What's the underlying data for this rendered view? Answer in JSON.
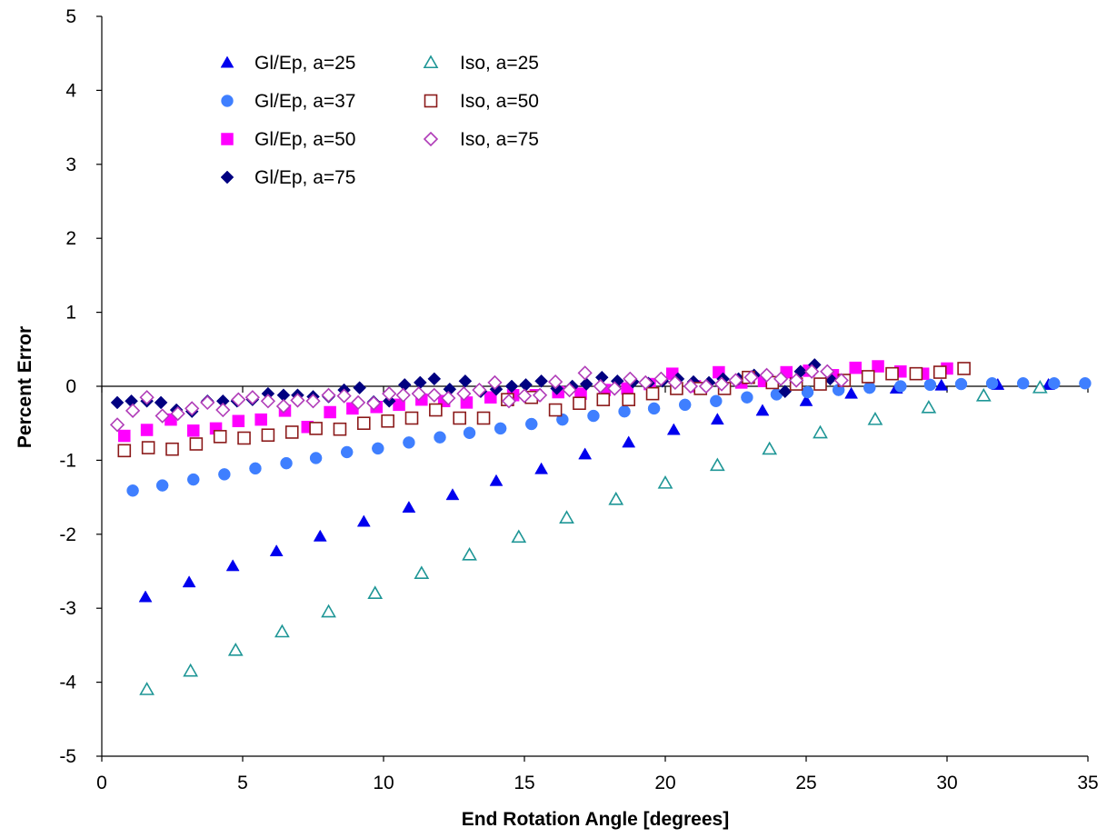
{
  "chart_data": {
    "type": "scatter",
    "title": "",
    "xlabel": "End Rotation Angle [degrees]",
    "ylabel": "Percent Error",
    "xlim": [
      0,
      35
    ],
    "ylim": [
      -5,
      5
    ],
    "xticks": [
      "0",
      "5",
      "10",
      "15",
      "20",
      "25",
      "30",
      "35"
    ],
    "yticks": [
      "5",
      "4",
      "3",
      "2",
      "1",
      "0",
      "-1",
      "-2",
      "-3",
      "-4",
      "-5"
    ],
    "grid": false,
    "legend_position": "top-left",
    "series": [
      {
        "name": "Gl/Ep, a=25",
        "marker": "triangle-filled",
        "color": "#0000EE",
        "x": [
          1.55,
          3.1,
          4.65,
          6.2,
          7.75,
          9.3,
          10.9,
          12.45,
          14.0,
          15.6,
          17.15,
          18.7,
          20.3,
          21.85,
          23.45,
          25.0,
          26.6,
          28.2,
          29.8,
          31.8,
          33.6
        ],
        "y": [
          -2.85,
          -2.65,
          -2.43,
          -2.23,
          -2.03,
          -1.83,
          -1.64,
          -1.47,
          -1.28,
          -1.12,
          -0.92,
          -0.76,
          -0.59,
          -0.45,
          -0.33,
          -0.2,
          -0.1,
          -0.03,
          0.01,
          0.02,
          0.02
        ]
      },
      {
        "name": "Gl/Ep, a=37",
        "marker": "circle-filled",
        "color": "#3F7FFF",
        "x": [
          1.1,
          2.15,
          3.25,
          4.35,
          5.45,
          6.55,
          7.6,
          8.7,
          9.8,
          10.9,
          12.0,
          13.05,
          14.15,
          15.25,
          16.35,
          17.45,
          18.55,
          19.6,
          20.7,
          21.8,
          22.9,
          23.95,
          25.05,
          26.15,
          27.25,
          28.35,
          29.4,
          30.5,
          31.6,
          32.7,
          33.8,
          34.9
        ],
        "y": [
          -1.41,
          -1.34,
          -1.26,
          -1.19,
          -1.11,
          -1.04,
          -0.97,
          -0.89,
          -0.84,
          -0.76,
          -0.69,
          -0.63,
          -0.57,
          -0.51,
          -0.45,
          -0.4,
          -0.34,
          -0.3,
          -0.25,
          -0.2,
          -0.15,
          -0.11,
          -0.08,
          -0.05,
          -0.02,
          0.0,
          0.02,
          0.03,
          0.04,
          0.04,
          0.04,
          0.04
        ]
      },
      {
        "name": "Gl/Ep, a=50",
        "marker": "square-filled",
        "color": "#FF00FF",
        "x": [
          0.8,
          1.6,
          2.45,
          3.25,
          4.05,
          4.85,
          5.65,
          6.5,
          7.3,
          8.1,
          8.9,
          9.75,
          10.55,
          11.35,
          12.15,
          12.95,
          13.8,
          14.6,
          15.4,
          16.2,
          17.0,
          17.85,
          18.65,
          19.45,
          20.25,
          21.05,
          21.9,
          22.7,
          23.5,
          24.3,
          25.1,
          25.95,
          26.75,
          27.55,
          28.35,
          29.15,
          30.0
        ],
        "y": [
          -0.67,
          -0.59,
          -0.45,
          -0.6,
          -0.57,
          -0.47,
          -0.45,
          -0.33,
          -0.55,
          -0.35,
          -0.3,
          -0.28,
          -0.25,
          -0.18,
          -0.2,
          -0.22,
          -0.15,
          -0.12,
          -0.12,
          -0.08,
          -0.1,
          -0.05,
          -0.03,
          0.03,
          0.17,
          0.0,
          0.19,
          0.05,
          0.07,
          0.19,
          0.21,
          0.15,
          0.25,
          0.27,
          0.2,
          0.17,
          0.24
        ]
      },
      {
        "name": "Gl/Ep, a=75",
        "marker": "diamond-filled",
        "color": "#000080",
        "x": [
          0.55,
          1.05,
          1.6,
          2.1,
          2.65,
          3.2,
          3.75,
          4.3,
          4.8,
          5.35,
          5.9,
          6.45,
          6.95,
          7.5,
          8.05,
          8.6,
          9.15,
          9.65,
          10.2,
          10.75,
          11.3,
          11.8,
          12.35,
          12.9,
          13.45,
          14.0,
          14.55,
          15.05,
          15.6,
          16.15,
          16.7,
          17.2,
          17.75,
          18.3,
          18.85,
          19.4,
          19.9,
          20.45,
          21.0,
          21.55,
          22.05,
          22.6,
          23.15,
          23.7,
          24.25,
          24.8,
          25.3,
          25.85
        ],
        "y": [
          -0.22,
          -0.2,
          -0.2,
          -0.22,
          -0.32,
          -0.34,
          -0.2,
          -0.2,
          -0.2,
          -0.18,
          -0.1,
          -0.12,
          -0.12,
          -0.14,
          -0.14,
          -0.05,
          -0.02,
          -0.21,
          -0.2,
          0.02,
          0.05,
          0.1,
          -0.04,
          0.07,
          -0.07,
          -0.04,
          0.0,
          0.02,
          0.07,
          -0.03,
          0.0,
          0.03,
          0.12,
          0.07,
          0.06,
          0.04,
          0.07,
          0.1,
          0.06,
          0.05,
          0.1,
          0.1,
          0.15,
          0.1,
          -0.07,
          0.2,
          0.29,
          0.1
        ]
      },
      {
        "name": "Iso, a=25",
        "marker": "triangle-open",
        "color": "#1E9696",
        "x": [
          1.6,
          3.15,
          4.75,
          6.4,
          8.05,
          9.7,
          11.35,
          13.05,
          14.8,
          16.5,
          18.25,
          20.0,
          21.85,
          23.7,
          25.5,
          27.45,
          29.35,
          31.3,
          33.3
        ],
        "y": [
          -4.1,
          -3.85,
          -3.57,
          -3.32,
          -3.05,
          -2.8,
          -2.53,
          -2.28,
          -2.04,
          -1.78,
          -1.53,
          -1.31,
          -1.07,
          -0.85,
          -0.63,
          -0.45,
          -0.29,
          -0.13,
          -0.02
        ]
      },
      {
        "name": "Iso, a=50",
        "marker": "square-open",
        "color": "#8B1A1A",
        "x": [
          0.8,
          1.65,
          2.5,
          3.35,
          4.2,
          5.05,
          5.9,
          6.75,
          7.6,
          8.45,
          9.3,
          10.15,
          11.0,
          11.85,
          12.7,
          13.55,
          14.4,
          15.25,
          16.1,
          16.95,
          17.8,
          18.7,
          19.55,
          20.4,
          21.25,
          22.1,
          22.95,
          23.8,
          24.65,
          25.5,
          26.35,
          27.2,
          28.05,
          28.9,
          29.75,
          30.6
        ],
        "y": [
          -0.87,
          -0.83,
          -0.85,
          -0.78,
          -0.68,
          -0.7,
          -0.66,
          -0.62,
          -0.57,
          -0.58,
          -0.5,
          -0.47,
          -0.43,
          -0.32,
          -0.43,
          -0.43,
          -0.18,
          -0.15,
          -0.32,
          -0.23,
          -0.18,
          -0.18,
          -0.1,
          -0.03,
          -0.03,
          -0.03,
          0.12,
          0.05,
          0.03,
          0.03,
          0.08,
          0.13,
          0.17,
          0.17,
          0.19,
          0.24
        ]
      },
      {
        "name": "Iso, a=75",
        "marker": "diamond-open",
        "color": "#B03CB8",
        "x": [
          0.55,
          1.1,
          1.6,
          2.15,
          2.7,
          3.2,
          3.75,
          4.3,
          4.85,
          5.35,
          5.9,
          6.45,
          6.95,
          7.5,
          8.05,
          8.6,
          9.1,
          9.65,
          10.2,
          10.7,
          11.25,
          11.8,
          12.3,
          12.85,
          13.4,
          13.95,
          14.45,
          15.0,
          15.55,
          16.1,
          16.6,
          17.15,
          17.7,
          18.2,
          18.75,
          19.3,
          19.85,
          20.35,
          20.9,
          21.45,
          22.0,
          22.5,
          23.05,
          23.6,
          24.1,
          24.65,
          25.2,
          25.75,
          26.25
        ],
        "y": [
          -0.52,
          -0.33,
          -0.15,
          -0.4,
          -0.37,
          -0.3,
          -0.22,
          -0.32,
          -0.18,
          -0.15,
          -0.2,
          -0.27,
          -0.19,
          -0.2,
          -0.12,
          -0.13,
          -0.22,
          -0.23,
          -0.1,
          -0.12,
          -0.1,
          -0.12,
          -0.16,
          -0.1,
          -0.05,
          0.05,
          -0.2,
          -0.13,
          -0.12,
          0.06,
          -0.05,
          0.18,
          0.0,
          -0.03,
          0.1,
          0.05,
          0.1,
          0.05,
          0.0,
          0.0,
          0.03,
          0.08,
          0.12,
          0.15,
          0.1,
          0.08,
          0.2,
          0.2,
          0.08
        ]
      }
    ]
  }
}
